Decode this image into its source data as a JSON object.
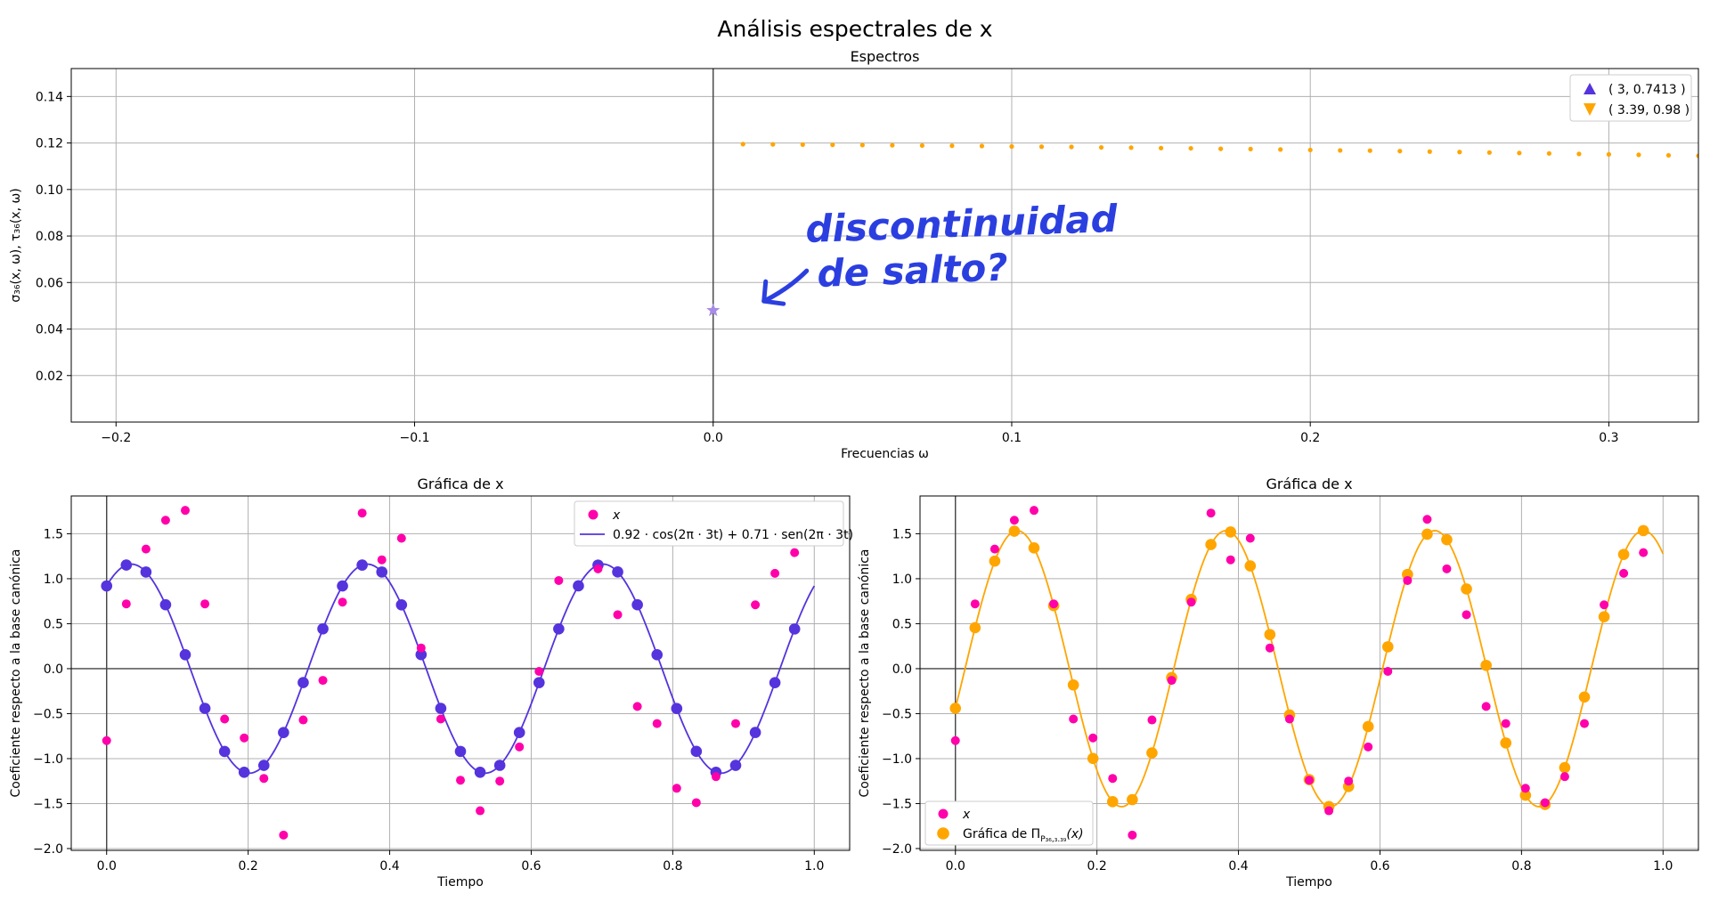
{
  "figure": {
    "suptitle": "Análisis espectrales de x",
    "colors": {
      "orange": "#ffa500",
      "blue": "#5533dd",
      "magenta": "#ff00aa",
      "star": "#a68ce6",
      "annotation": "#2b3fe0",
      "grid": "#b0b0b0",
      "axisline": "#444444"
    }
  },
  "chart_data": [
    {
      "type": "scatter",
      "title": "Espectros",
      "xlabel": "Frecuencias ω",
      "ylabel": "σ₃₆(x, ω), τ₃₆(x, ω)",
      "xlim": [
        -0.215,
        0.33
      ],
      "ylim": [
        0.0,
        0.152
      ],
      "xticks": [
        -0.2,
        -0.1,
        0.0,
        0.1,
        0.2,
        0.3
      ],
      "xtick_labels": [
        "−0.2",
        "−0.1",
        "0.0",
        "0.1",
        "0.2",
        "0.3"
      ],
      "yticks": [
        0.02,
        0.04,
        0.06,
        0.08,
        0.1,
        0.12,
        0.14
      ],
      "ytick_labels": [
        "0.02",
        "0.04",
        "0.06",
        "0.08",
        "0.10",
        "0.12",
        "0.14"
      ],
      "grid": true,
      "legend": {
        "placement": "top-right",
        "entries": [
          "( 3, 0.7413 )",
          "( 3.39, 0.98 )"
        ]
      },
      "series": [
        {
          "marker": "dot",
          "color": "#ffa500",
          "x": [
            0.01,
            0.02,
            0.03,
            0.04,
            0.05,
            0.06,
            0.07,
            0.08,
            0.09,
            0.1,
            0.11,
            0.12,
            0.13,
            0.14,
            0.15,
            0.16,
            0.17,
            0.18,
            0.19,
            0.2,
            0.21,
            0.22,
            0.23,
            0.24,
            0.25,
            0.26,
            0.27,
            0.28,
            0.29,
            0.3,
            0.31,
            0.32,
            0.33
          ],
          "y": [
            0.1195,
            0.1194,
            0.1193,
            0.1192,
            0.1191,
            0.119,
            0.1189,
            0.1188,
            0.1187,
            0.1185,
            0.1184,
            0.1183,
            0.1181,
            0.118,
            0.1178,
            0.1177,
            0.1175,
            0.1174,
            0.1172,
            0.117,
            0.1168,
            0.1167,
            0.1165,
            0.1163,
            0.1161,
            0.1159,
            0.1157,
            0.1155,
            0.1153,
            0.1151,
            0.1149,
            0.1147,
            0.1145
          ]
        },
        {
          "marker": "star",
          "color": "#a68ce6",
          "x": [
            0.0
          ],
          "y": [
            0.048
          ]
        }
      ],
      "annotation": {
        "lines": [
          "discontinuidad",
          "de salto?"
        ],
        "arrow_to": [
          0.017,
          0.052
        ]
      }
    },
    {
      "type": "scatter",
      "title": "Gráfica de x",
      "xlabel": "Tiempo",
      "ylabel": "Coeficiente respecto a la base canónica",
      "xlim": [
        -0.05,
        1.05
      ],
      "ylim": [
        -2.02,
        1.92
      ],
      "xticks": [
        0.0,
        0.2,
        0.4,
        0.6,
        0.8,
        1.0
      ],
      "xtick_labels": [
        "0.0",
        "0.2",
        "0.4",
        "0.6",
        "0.8",
        "1.0"
      ],
      "yticks": [
        -2.0,
        -1.5,
        -1.0,
        -0.5,
        0.0,
        0.5,
        1.0,
        1.5
      ],
      "ytick_labels": [
        "−2.0",
        "−1.5",
        "−1.0",
        "−0.5",
        "0.0",
        "0.5",
        "1.0",
        "1.5"
      ],
      "grid": true,
      "legend": {
        "placement": "top-right",
        "entries": [
          "x",
          "0.92 · cos(2π · 3t) + 0.71 · sen(2π · 3t)"
        ]
      },
      "samples": {
        "x": [
          0.0,
          0.0278,
          0.0556,
          0.0833,
          0.1111,
          0.1389,
          0.1667,
          0.1944,
          0.2222,
          0.25,
          0.2778,
          0.3056,
          0.3333,
          0.3611,
          0.3889,
          0.4167,
          0.4444,
          0.4722,
          0.5,
          0.5278,
          0.5556,
          0.5833,
          0.6111,
          0.6389,
          0.6667,
          0.6944,
          0.7222,
          0.75,
          0.7778,
          0.8056,
          0.8333,
          0.8611,
          0.8889,
          0.9167,
          0.9444,
          0.9722
        ],
        "y": [
          -0.8,
          0.72,
          1.33,
          1.65,
          1.76,
          0.72,
          -0.56,
          -0.77,
          -1.22,
          -1.85,
          -0.57,
          -0.13,
          0.74,
          1.73,
          1.21,
          1.45,
          0.23,
          -0.56,
          -1.24,
          -1.58,
          -1.25,
          -0.87,
          -0.03,
          0.98,
          1.66,
          1.11,
          0.6,
          -0.42,
          -0.61,
          -1.33,
          -1.49,
          -1.2,
          -0.61,
          0.71,
          1.06,
          1.29
        ]
      },
      "fit": {
        "a": 0.92,
        "b": 0.71,
        "freq": 3,
        "color": "#5533dd"
      }
    },
    {
      "type": "scatter",
      "title": "Gráfica de x",
      "xlabel": "Tiempo",
      "ylabel": "Coeficiente respecto a la base canónica",
      "xlim": [
        -0.05,
        1.05
      ],
      "ylim": [
        -2.02,
        1.92
      ],
      "xticks": [
        0.0,
        0.2,
        0.4,
        0.6,
        0.8,
        1.0
      ],
      "xtick_labels": [
        "0.0",
        "0.2",
        "0.4",
        "0.6",
        "0.8",
        "1.0"
      ],
      "yticks": [
        -2.0,
        -1.5,
        -1.0,
        -0.5,
        0.0,
        0.5,
        1.0,
        1.5
      ],
      "ytick_labels": [
        "−2.0",
        "−1.5",
        "−1.0",
        "−0.5",
        "0.0",
        "0.5",
        "1.0",
        "1.5"
      ],
      "grid": true,
      "legend": {
        "placement": "bottom-left",
        "entries": [
          "x",
          "Gráfica de Π",
          "P₃₆,₃.₃₉",
          "(x)"
        ]
      },
      "fit": {
        "a": -0.44,
        "b": 1.47,
        "freq": 3.39,
        "color": "#ffa500"
      }
    }
  ]
}
